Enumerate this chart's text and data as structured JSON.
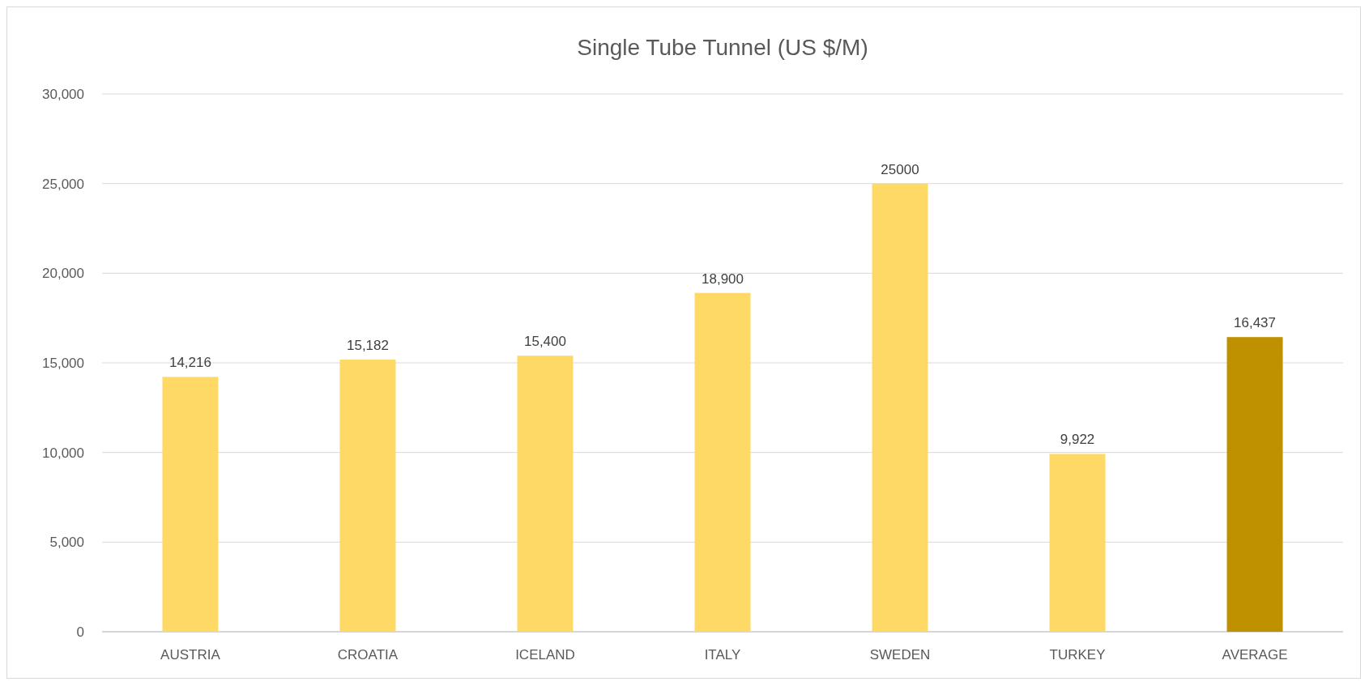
{
  "chart_data": {
    "type": "bar",
    "title": "Single Tube Tunnel (US $/M)",
    "categories": [
      "AUSTRIA",
      "CROATIA",
      "ICELAND",
      "ITALY",
      "SWEDEN",
      "TURKEY",
      "AVERAGE"
    ],
    "values": [
      14216,
      15182,
      15400,
      18900,
      25000,
      9922,
      16437
    ],
    "colors": [
      "#ffd966",
      "#ffd966",
      "#ffd966",
      "#ffd966",
      "#ffd966",
      "#ffd966",
      "#bf9000"
    ],
    "value_labels": [
      "14,216",
      "15,182",
      "15,400",
      "18,900",
      "25000",
      "9,922",
      "16,437"
    ],
    "ylim": [
      0,
      30000
    ],
    "yticks": [
      {
        "value": 0,
        "label": "0"
      },
      {
        "value": 5000,
        "label": "5,000"
      },
      {
        "value": 10000,
        "label": "10,000"
      },
      {
        "value": 15000,
        "label": "15,000"
      },
      {
        "value": 20000,
        "label": "20,000"
      },
      {
        "value": 25000,
        "label": "25,000"
      },
      {
        "value": 30000,
        "label": "30,000"
      }
    ],
    "grid": "y"
  }
}
